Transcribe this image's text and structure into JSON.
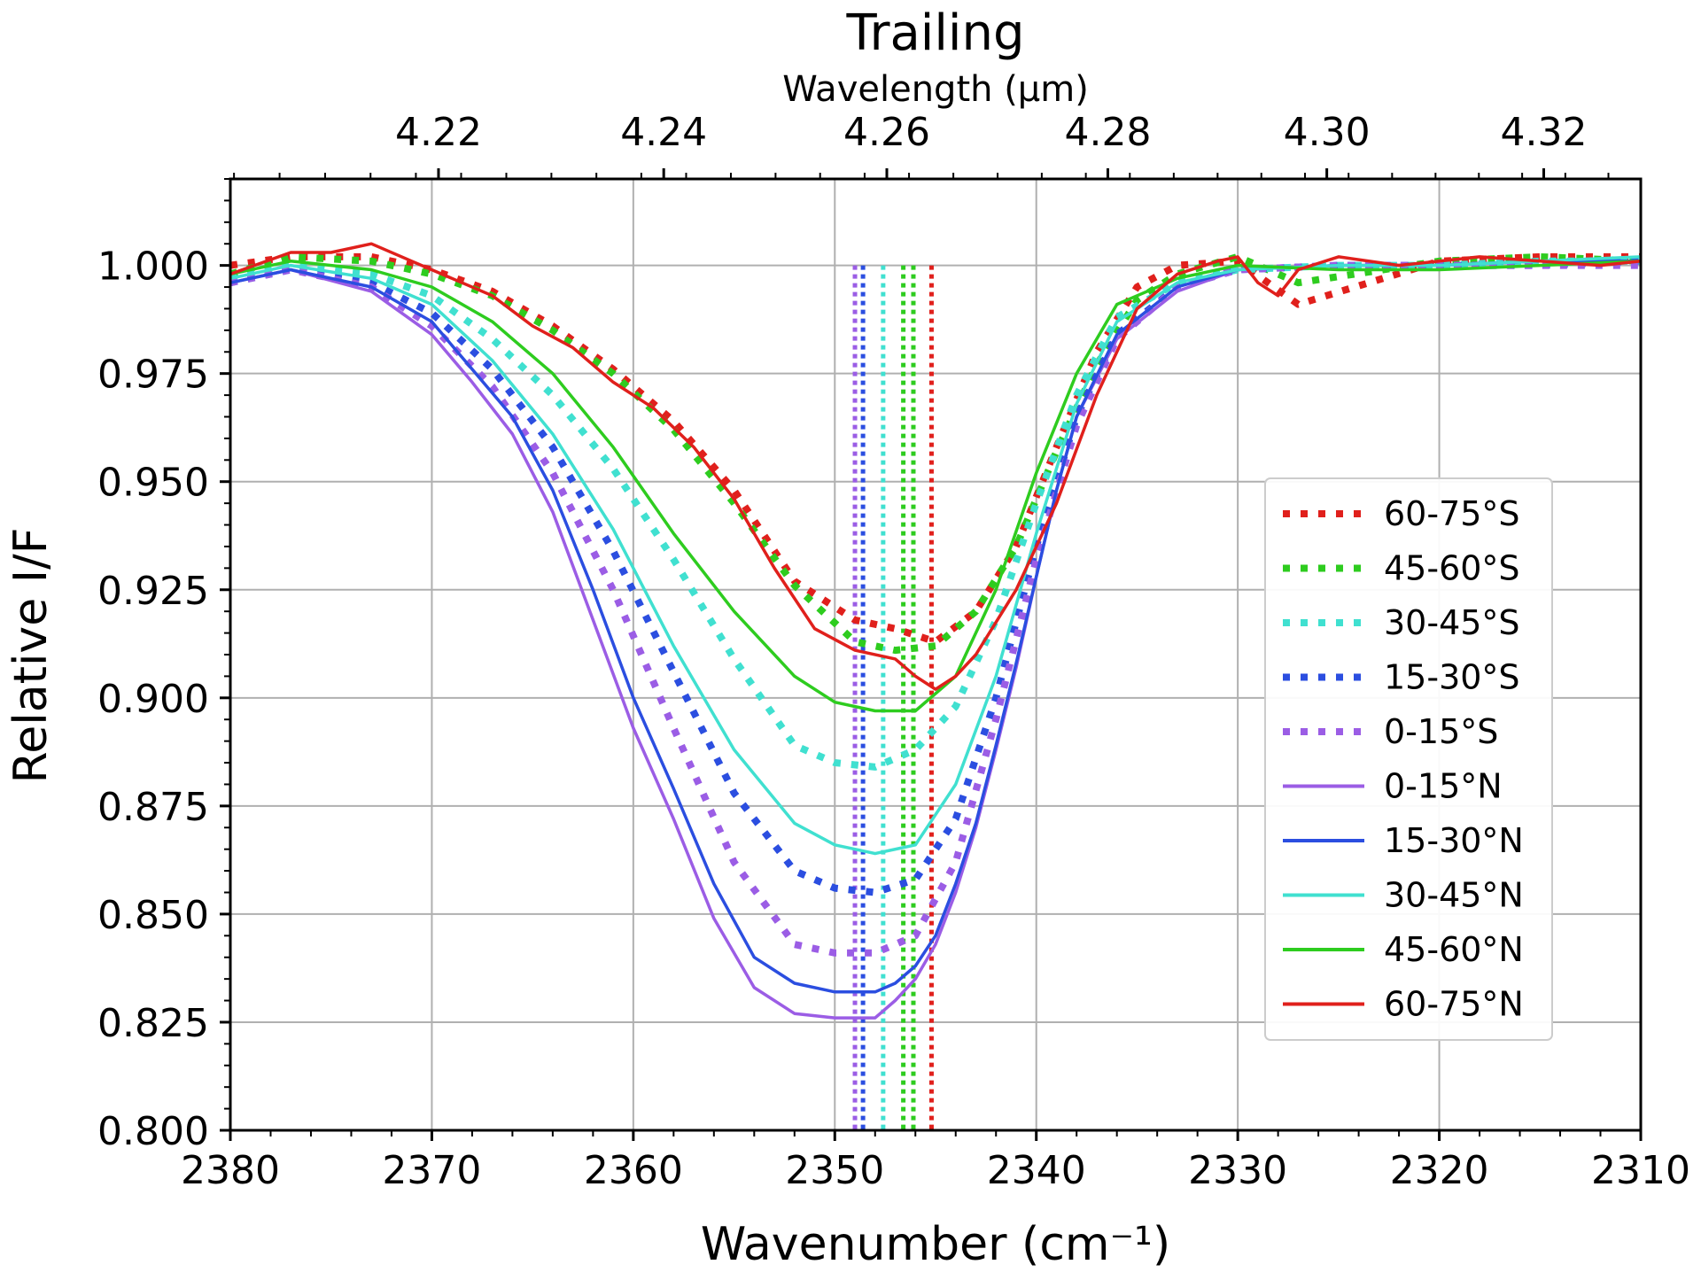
{
  "chart_data": {
    "type": "line",
    "title": "Trailing",
    "xlabel": "Wavenumber (cm⁻¹)",
    "ylabel": "Relative I/F",
    "top_xlabel": "Wavelength (μm)",
    "xlim": [
      2380,
      2310
    ],
    "ylim": [
      0.8,
      1.02
    ],
    "grid": true,
    "legend_position": "right",
    "x_ticks": [
      2380,
      2370,
      2360,
      2350,
      2340,
      2330,
      2320,
      2310
    ],
    "x_tick_labels": [
      "2380",
      "2370",
      "2360",
      "2350",
      "2340",
      "2330",
      "2320",
      "2310"
    ],
    "y_ticks": [
      0.8,
      0.825,
      0.85,
      0.875,
      0.9,
      0.925,
      0.95,
      0.975,
      1.0
    ],
    "y_tick_labels": [
      "0.800",
      "0.825",
      "0.850",
      "0.875",
      "0.900",
      "0.925",
      "0.950",
      "0.975",
      "1.000"
    ],
    "top_ticks_um": [
      4.22,
      4.24,
      4.26,
      4.28,
      4.3,
      4.32
    ],
    "top_tick_labels": [
      "4.22",
      "4.24",
      "4.26",
      "4.28",
      "4.30",
      "4.32"
    ],
    "vlines": [
      {
        "x": 2349.0,
        "color": "#9b5de5"
      },
      {
        "x": 2348.6,
        "color": "#2b4ee0"
      },
      {
        "x": 2347.6,
        "color": "#40e0d0"
      },
      {
        "x": 2346.6,
        "color": "#2ecc1f"
      },
      {
        "x": 2346.1,
        "color": "#2ecc1f"
      },
      {
        "x": 2345.2,
        "color": "#e0201c"
      }
    ],
    "series": [
      {
        "name": "60-75°S",
        "color": "#e0201c",
        "style": "dotted",
        "x": [
          2380,
          2377,
          2373,
          2370,
          2367,
          2364,
          2361,
          2358,
          2355,
          2352,
          2349,
          2347,
          2345,
          2343,
          2341,
          2339,
          2337,
          2335,
          2333,
          2330,
          2327,
          2320,
          2315,
          2310
        ],
        "y": [
          1.0,
          1.002,
          1.002,
          0.999,
          0.994,
          0.986,
          0.976,
          0.964,
          0.948,
          0.927,
          0.918,
          0.916,
          0.913,
          0.92,
          0.935,
          0.958,
          0.98,
          0.995,
          1.0,
          1.001,
          0.991,
          1.001,
          1.002,
          1.002
        ]
      },
      {
        "name": "45-60°S",
        "color": "#2ecc1f",
        "style": "dotted",
        "x": [
          2380,
          2377,
          2373,
          2370,
          2367,
          2364,
          2361,
          2358,
          2355,
          2352,
          2349,
          2347,
          2345,
          2343,
          2341,
          2339,
          2337,
          2335,
          2333,
          2330,
          2327,
          2320,
          2315,
          2310
        ],
        "y": [
          0.998,
          1.002,
          1.001,
          0.998,
          0.993,
          0.985,
          0.975,
          0.962,
          0.945,
          0.926,
          0.913,
          0.911,
          0.912,
          0.92,
          0.935,
          0.957,
          0.977,
          0.992,
          0.998,
          1.002,
          0.996,
          1.001,
          1.002,
          1.001
        ]
      },
      {
        "name": "30-45°S",
        "color": "#40e0d0",
        "style": "dotted",
        "x": [
          2380,
          2377,
          2373,
          2370,
          2367,
          2364,
          2361,
          2358,
          2355,
          2352,
          2350,
          2348,
          2346,
          2344,
          2342,
          2340,
          2338,
          2336,
          2333,
          2330,
          2325,
          2320,
          2315,
          2310
        ],
        "y": [
          0.997,
          1.0,
          0.998,
          0.993,
          0.983,
          0.97,
          0.953,
          0.932,
          0.909,
          0.889,
          0.885,
          0.884,
          0.888,
          0.898,
          0.918,
          0.945,
          0.97,
          0.988,
          0.996,
          0.999,
          1.0,
          1.0,
          1.001,
          1.001
        ]
      },
      {
        "name": "15-30°S",
        "color": "#2b4ee0",
        "style": "dotted",
        "x": [
          2380,
          2377,
          2373,
          2370,
          2367,
          2364,
          2361,
          2358,
          2355,
          2352,
          2350,
          2348,
          2346,
          2344,
          2342,
          2340,
          2338,
          2336,
          2333,
          2330,
          2325,
          2320,
          2315,
          2310
        ],
        "y": [
          0.996,
          0.999,
          0.996,
          0.989,
          0.976,
          0.958,
          0.934,
          0.906,
          0.878,
          0.86,
          0.856,
          0.855,
          0.858,
          0.872,
          0.9,
          0.935,
          0.965,
          0.984,
          0.995,
          0.999,
          1.0,
          1.0,
          1.0,
          1.001
        ]
      },
      {
        "name": "0-15°S",
        "color": "#9b5de5",
        "style": "dotted",
        "x": [
          2380,
          2377,
          2373,
          2370,
          2367,
          2364,
          2361,
          2358,
          2355,
          2352,
          2350,
          2348,
          2346,
          2344,
          2342,
          2340,
          2338,
          2336,
          2333,
          2330,
          2325,
          2320,
          2315,
          2310
        ],
        "y": [
          0.996,
          0.999,
          0.995,
          0.986,
          0.972,
          0.952,
          0.925,
          0.893,
          0.862,
          0.843,
          0.841,
          0.841,
          0.845,
          0.862,
          0.895,
          0.932,
          0.963,
          0.983,
          0.995,
          0.999,
          1.0,
          1.0,
          1.0,
          1.0
        ]
      },
      {
        "name": "0-15°N",
        "color": "#9b5de5",
        "style": "solid",
        "x": [
          2380,
          2377,
          2373,
          2370,
          2368,
          2366,
          2364,
          2362,
          2360,
          2358,
          2356,
          2354,
          2352,
          2350,
          2348,
          2347,
          2346,
          2345,
          2344,
          2343,
          2342,
          2341,
          2340,
          2339,
          2338,
          2336,
          2333,
          2330,
          2325,
          2320,
          2315,
          2310
        ],
        "y": [
          0.996,
          0.999,
          0.994,
          0.984,
          0.973,
          0.961,
          0.943,
          0.918,
          0.893,
          0.872,
          0.849,
          0.833,
          0.827,
          0.826,
          0.826,
          0.83,
          0.835,
          0.843,
          0.855,
          0.87,
          0.888,
          0.907,
          0.928,
          0.948,
          0.965,
          0.983,
          0.994,
          0.999,
          1.0,
          1.0,
          1.001,
          1.001
        ]
      },
      {
        "name": "15-30°N",
        "color": "#2b4ee0",
        "style": "solid",
        "x": [
          2380,
          2377,
          2373,
          2370,
          2368,
          2366,
          2364,
          2362,
          2360,
          2358,
          2356,
          2354,
          2352,
          2350,
          2348,
          2347,
          2346,
          2345,
          2344,
          2343,
          2342,
          2341,
          2340,
          2339,
          2338,
          2336,
          2333,
          2330,
          2325,
          2320,
          2315,
          2310
        ],
        "y": [
          0.996,
          0.999,
          0.995,
          0.987,
          0.976,
          0.965,
          0.948,
          0.925,
          0.9,
          0.879,
          0.857,
          0.84,
          0.834,
          0.832,
          0.832,
          0.834,
          0.838,
          0.845,
          0.857,
          0.871,
          0.889,
          0.908,
          0.928,
          0.948,
          0.965,
          0.984,
          0.995,
          0.999,
          1.0,
          1.0,
          1.001,
          1.001
        ]
      },
      {
        "name": "30-45°N",
        "color": "#40e0d0",
        "style": "solid",
        "x": [
          2380,
          2377,
          2373,
          2370,
          2367,
          2364,
          2361,
          2358,
          2355,
          2352,
          2350,
          2348,
          2346,
          2344,
          2342,
          2340,
          2338,
          2336,
          2333,
          2330,
          2325,
          2320,
          2315,
          2310
        ],
        "y": [
          0.997,
          1.0,
          0.997,
          0.991,
          0.978,
          0.961,
          0.939,
          0.912,
          0.888,
          0.871,
          0.866,
          0.864,
          0.866,
          0.88,
          0.905,
          0.938,
          0.968,
          0.987,
          0.996,
          0.999,
          1.0,
          1.0,
          1.001,
          1.002
        ]
      },
      {
        "name": "45-60°N",
        "color": "#2ecc1f",
        "style": "solid",
        "x": [
          2380,
          2377,
          2373,
          2370,
          2367,
          2364,
          2361,
          2358,
          2355,
          2352,
          2350,
          2348,
          2346,
          2344,
          2342,
          2340,
          2338,
          2336,
          2333,
          2330,
          2325,
          2320,
          2315,
          2310
        ],
        "y": [
          0.998,
          1.001,
          0.999,
          0.995,
          0.987,
          0.975,
          0.958,
          0.938,
          0.92,
          0.905,
          0.899,
          0.897,
          0.897,
          0.905,
          0.925,
          0.952,
          0.975,
          0.991,
          0.997,
          1.0,
          0.999,
          0.999,
          1.0,
          1.001
        ]
      },
      {
        "name": "60-75°N",
        "color": "#e0201c",
        "style": "solid",
        "x": [
          2380,
          2377,
          2375,
          2373,
          2371,
          2369,
          2367,
          2365,
          2363,
          2361,
          2359,
          2357,
          2355,
          2353,
          2351,
          2349,
          2347,
          2346,
          2345,
          2344,
          2343,
          2341,
          2339,
          2337,
          2335,
          2333,
          2331,
          2330,
          2329,
          2328,
          2327,
          2325,
          2322,
          2318,
          2315,
          2312,
          2310
        ],
        "y": [
          0.998,
          1.003,
          1.003,
          1.005,
          1.001,
          0.997,
          0.993,
          0.986,
          0.981,
          0.973,
          0.967,
          0.958,
          0.946,
          0.93,
          0.916,
          0.911,
          0.909,
          0.905,
          0.902,
          0.905,
          0.91,
          0.925,
          0.945,
          0.97,
          0.99,
          0.998,
          1.001,
          1.002,
          0.996,
          0.993,
          0.999,
          1.002,
          1.0,
          1.002,
          1.001,
          1.0,
          1.001
        ]
      }
    ]
  }
}
